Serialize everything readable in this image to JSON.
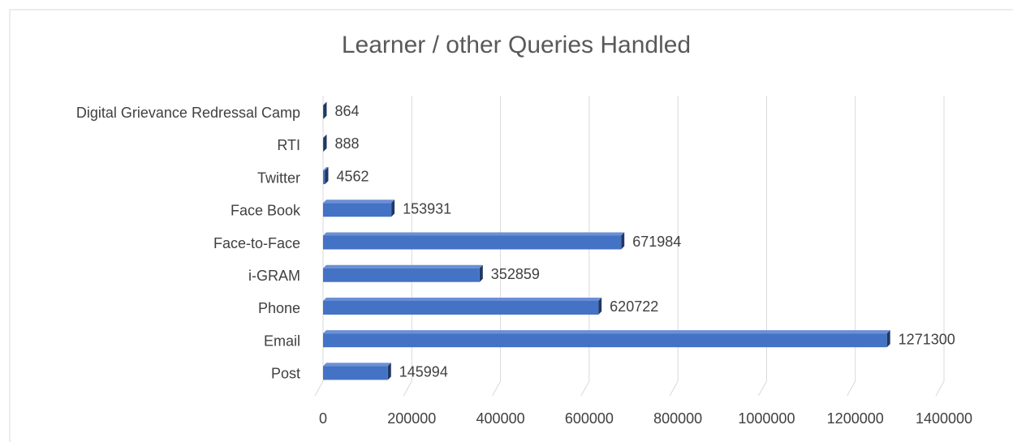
{
  "chart_data": {
    "type": "bar",
    "orientation": "horizontal",
    "title": "Learner / other Queries Handled",
    "categories": [
      "Post",
      "Email",
      "Phone",
      "i-GRAM",
      "Face-to-Face",
      "Face Book",
      "Twitter",
      "RTI",
      "Digital Grievance Redressal Camp"
    ],
    "values": [
      145994,
      1271300,
      620722,
      352859,
      671984,
      153931,
      4562,
      888,
      864
    ],
    "color": "#4472c4",
    "xlim": [
      0,
      1400000
    ],
    "xticks": [
      0,
      200000,
      400000,
      600000,
      800000,
      1000000,
      1200000,
      1400000
    ],
    "grid": true
  }
}
